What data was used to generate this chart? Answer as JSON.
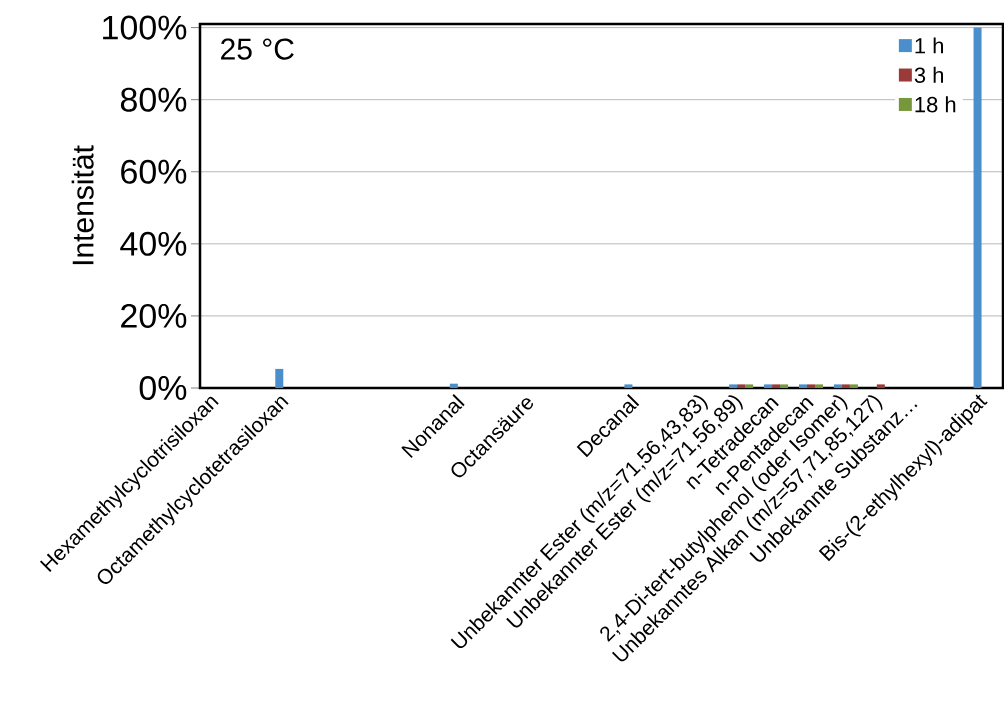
{
  "chart_data": {
    "type": "bar",
    "ylabel": "Intensität",
    "annotations": [
      "25 °C"
    ],
    "categories": [
      "Hexamethylcyclotrisiloxan",
      null,
      "Octamethylcyclotetrasiloxan",
      null,
      null,
      null,
      null,
      "Nonanal",
      null,
      "Octansäure",
      null,
      null,
      "Decanal",
      null,
      "Unbekannter Ester (m/z=71,56,43,83)",
      "Unbekannter Ester (m/z=71,56,89)",
      "n-Tetradecan",
      "n-Pentadecan",
      "2,4-Di-tert-butylphenol  (oder Isomer)",
      "Unbekanntes Alkan (m/z=57,71,85,127)",
      "Unbekannte Substanz…",
      null,
      "Bis-(2-ethylhexyl)-adipat"
    ],
    "series": [
      {
        "name": "1 h",
        "color": "#4a8ecb",
        "values": [
          null,
          null,
          5.3,
          null,
          null,
          null,
          null,
          1.2,
          null,
          null,
          null,
          null,
          1,
          null,
          null,
          1,
          1,
          1,
          1,
          null,
          null,
          null,
          100
        ]
      },
      {
        "name": "3 h",
        "color": "#9b3b39",
        "values": [
          null,
          null,
          null,
          null,
          null,
          null,
          null,
          null,
          null,
          null,
          null,
          null,
          null,
          null,
          null,
          1,
          1,
          1,
          1,
          1,
          null,
          null,
          null
        ]
      },
      {
        "name": "18 h",
        "color": "#77973d",
        "values": [
          null,
          null,
          null,
          null,
          null,
          null,
          null,
          null,
          null,
          null,
          null,
          null,
          null,
          null,
          null,
          1,
          1,
          1,
          1,
          null,
          null,
          null,
          null
        ]
      }
    ],
    "ylim": [
      0,
      101
    ],
    "yticks": [
      {
        "value": 0,
        "label": "0%"
      },
      {
        "value": 20,
        "label": "20%"
      },
      {
        "value": 40,
        "label": "40%"
      },
      {
        "value": 60,
        "label": "60%"
      },
      {
        "value": 80,
        "label": "80%"
      },
      {
        "value": 100,
        "label": "100%"
      }
    ],
    "grid": "y",
    "legend": "top right"
  }
}
